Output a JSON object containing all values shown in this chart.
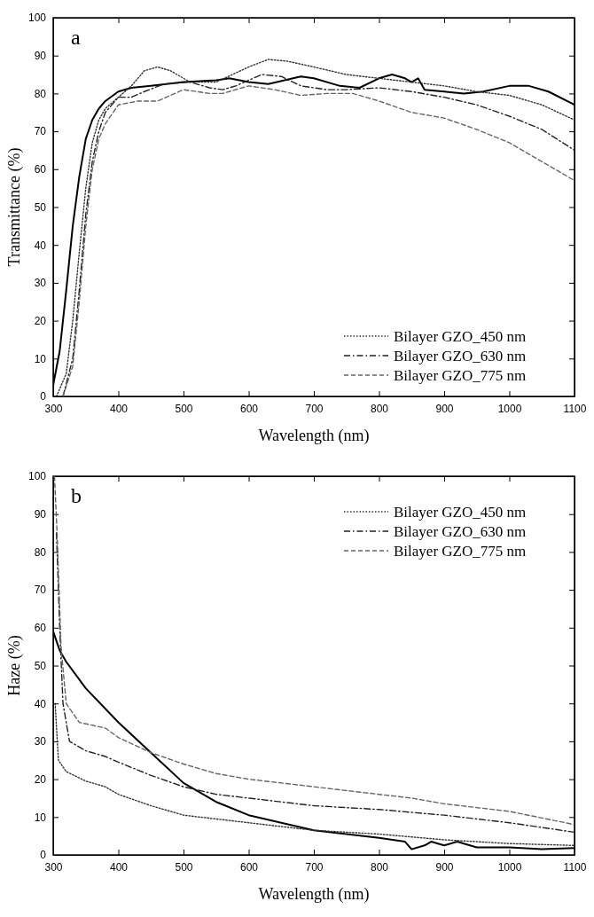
{
  "chart_data": [
    {
      "type": "line",
      "xlabel": "Wavelength (nm)",
      "ylabel": "Transmittance (%)",
      "annotations": [
        "a"
      ],
      "xlim": [
        300,
        1100
      ],
      "ylim": [
        0,
        100
      ],
      "xticks": [
        300,
        400,
        500,
        600,
        700,
        800,
        900,
        1000,
        1100
      ],
      "yticks": [
        0,
        10,
        20,
        30,
        40,
        50,
        60,
        70,
        80,
        90,
        100
      ],
      "legend": "bottom right",
      "series": [
        {
          "color": "#000000",
          "line_style": "solid",
          "x": [
            300,
            310,
            320,
            330,
            340,
            350,
            360,
            370,
            380,
            400,
            420,
            450,
            500,
            550,
            570,
            600,
            630,
            680,
            700,
            740,
            770,
            800,
            820,
            840,
            850,
            860,
            870,
            900,
            930,
            960,
            1000,
            1030,
            1060,
            1100
          ],
          "values": [
            3,
            12,
            28,
            45,
            58,
            68,
            73,
            76,
            78,
            80.5,
            81.5,
            82,
            83,
            83.5,
            84,
            83,
            82.5,
            84.5,
            84,
            82,
            81.5,
            84,
            85,
            84,
            83,
            84,
            81,
            80.5,
            80,
            80.5,
            82,
            82,
            80.5,
            77
          ]
        },
        {
          "name": "Bilayer GZO_450 nm",
          "color": "#333333",
          "line_style": "dotted",
          "x": [
            305,
            320,
            330,
            340,
            350,
            360,
            370,
            380,
            400,
            420,
            440,
            460,
            480,
            510,
            550,
            600,
            630,
            660,
            700,
            750,
            800,
            850,
            900,
            950,
            1000,
            1050,
            1100
          ],
          "values": [
            0,
            6,
            20,
            38,
            55,
            67,
            73,
            76,
            79,
            82,
            86,
            87,
            86,
            83,
            83,
            87,
            89,
            88.5,
            87,
            85,
            84,
            83,
            82,
            80.5,
            79.5,
            77,
            73
          ]
        },
        {
          "name": "Bilayer GZO_630 nm",
          "color": "#222222",
          "line_style": "dashdot",
          "x": [
            315,
            330,
            340,
            350,
            360,
            370,
            380,
            400,
            420,
            440,
            470,
            510,
            540,
            560,
            580,
            620,
            650,
            680,
            720,
            750,
            800,
            850,
            900,
            950,
            1000,
            1050,
            1100
          ],
          "values": [
            0,
            10,
            28,
            48,
            62,
            70,
            75,
            79,
            79,
            80.5,
            82.5,
            83,
            81.5,
            81,
            82,
            85,
            84.5,
            82,
            81,
            81,
            81.5,
            80.5,
            79,
            77,
            74,
            70.5,
            65
          ]
        },
        {
          "name": "Bilayer GZO_775 nm",
          "color": "#666666",
          "line_style": "dashed",
          "x": [
            315,
            330,
            340,
            350,
            360,
            370,
            380,
            400,
            430,
            460,
            500,
            540,
            560,
            600,
            640,
            680,
            720,
            760,
            800,
            850,
            900,
            950,
            1000,
            1050,
            1100
          ],
          "values": [
            0,
            8,
            25,
            45,
            60,
            68,
            72,
            77,
            78,
            78,
            81,
            80,
            80,
            82,
            81,
            79.5,
            80,
            80,
            78,
            75,
            73.5,
            70.5,
            67,
            62,
            57
          ]
        }
      ]
    },
    {
      "type": "line",
      "xlabel": "Wavelength (nm)",
      "ylabel": "Haze (%)",
      "annotations": [
        "b"
      ],
      "xlim": [
        300,
        1100
      ],
      "ylim": [
        0,
        100
      ],
      "xticks": [
        300,
        400,
        500,
        600,
        700,
        800,
        900,
        1000,
        1100
      ],
      "yticks": [
        0,
        10,
        20,
        30,
        40,
        50,
        60,
        70,
        80,
        90,
        100
      ],
      "legend": "top right",
      "series": [
        {
          "color": "#000000",
          "line_style": "solid",
          "x": [
            300,
            310,
            320,
            350,
            400,
            450,
            500,
            550,
            600,
            650,
            700,
            750,
            800,
            840,
            850,
            870,
            880,
            900,
            920,
            950,
            1000,
            1050,
            1100
          ],
          "values": [
            59,
            54,
            51,
            44,
            35,
            27,
            19,
            14,
            10.5,
            8.5,
            6.5,
            5.5,
            4.5,
            3.5,
            1.5,
            2.5,
            3.5,
            2.5,
            3.5,
            2,
            2,
            1.5,
            1.8
          ]
        },
        {
          "name": "Bilayer GZO_450 nm",
          "color": "#333333",
          "line_style": "dotted",
          "x": [
            303,
            308,
            320,
            350,
            380,
            400,
            450,
            500,
            600,
            700,
            800,
            900,
            1000,
            1100
          ],
          "values": [
            40,
            25,
            22,
            19.5,
            18,
            16,
            13,
            10.5,
            8.5,
            6.5,
            5.5,
            4,
            3,
            2.5
          ]
        },
        {
          "name": "Bilayer GZO_630 nm",
          "color": "#222222",
          "line_style": "dashdot",
          "x": [
            305,
            310,
            315,
            325,
            350,
            380,
            400,
            450,
            500,
            550,
            600,
            700,
            800,
            900,
            1000,
            1100
          ],
          "values": [
            85,
            60,
            40,
            30,
            27.5,
            26,
            24.5,
            21,
            18,
            16,
            15,
            13,
            12,
            10.5,
            8.5,
            6
          ]
        },
        {
          "name": "Bilayer GZO_775 nm",
          "color": "#666666",
          "line_style": "dashed",
          "x": [
            302,
            306,
            312,
            320,
            340,
            380,
            400,
            450,
            500,
            550,
            600,
            700,
            800,
            850,
            900,
            1000,
            1100
          ],
          "values": [
            100,
            85,
            55,
            40,
            35,
            33.5,
            31,
            27,
            24,
            21.5,
            20,
            18,
            16,
            15,
            13.5,
            11.5,
            8
          ]
        }
      ]
    }
  ]
}
